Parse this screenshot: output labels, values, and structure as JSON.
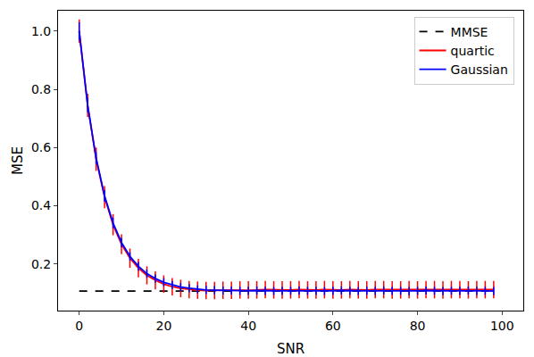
{
  "chart_data": {
    "type": "line",
    "x_label": "SNR",
    "y_label": "MSE",
    "x": [
      0,
      2,
      4,
      6,
      8,
      10,
      12,
      14,
      16,
      18,
      20,
      22,
      24,
      26,
      28,
      30,
      32,
      34,
      36,
      38,
      40,
      42,
      44,
      46,
      48,
      50,
      52,
      54,
      56,
      58,
      60,
      62,
      64,
      66,
      68,
      70,
      72,
      74,
      76,
      78,
      80,
      82,
      84,
      86,
      88,
      90,
      92,
      94,
      96,
      98
    ],
    "series": [
      {
        "name": "MMSE",
        "color": "#000000",
        "line_style": "dashed",
        "values": [
          0.107,
          0.107,
          0.107,
          0.107,
          0.107,
          0.107,
          0.107,
          0.107,
          0.107,
          0.107,
          0.107,
          0.107,
          0.107,
          0.107,
          0.107,
          0.107,
          0.107,
          0.107,
          0.107,
          0.107,
          0.107,
          0.107,
          0.107,
          0.107,
          0.107,
          0.107,
          0.107,
          0.107,
          0.107,
          0.107,
          0.107,
          0.107,
          0.107,
          0.107,
          0.107,
          0.107,
          0.107,
          0.107,
          0.107,
          0.107,
          0.107,
          0.107,
          0.107,
          0.107,
          0.107,
          0.107,
          0.107,
          0.107,
          0.107,
          0.107
        ]
      },
      {
        "name": "quartic",
        "color": "#ff0000",
        "line_style": "solid",
        "values": [
          1.0,
          0.745,
          0.56,
          0.43,
          0.335,
          0.268,
          0.22,
          0.186,
          0.161,
          0.144,
          0.131,
          0.122,
          0.116,
          0.112,
          0.11,
          0.109,
          0.109,
          0.11,
          0.11,
          0.111,
          0.111,
          0.111,
          0.112,
          0.111,
          0.111,
          0.111,
          0.112,
          0.111,
          0.111,
          0.112,
          0.111,
          0.111,
          0.112,
          0.111,
          0.111,
          0.112,
          0.112,
          0.111,
          0.111,
          0.112,
          0.111,
          0.112,
          0.112,
          0.111,
          0.112,
          0.112,
          0.111,
          0.112,
          0.112,
          0.112
        ],
        "errors": [
          0.04,
          0.04,
          0.04,
          0.038,
          0.036,
          0.034,
          0.033,
          0.032,
          0.031,
          0.031,
          0.03,
          0.03,
          0.03,
          0.03,
          0.03,
          0.03,
          0.03,
          0.03,
          0.03,
          0.03,
          0.03,
          0.03,
          0.03,
          0.03,
          0.03,
          0.03,
          0.03,
          0.03,
          0.03,
          0.03,
          0.03,
          0.03,
          0.03,
          0.03,
          0.03,
          0.03,
          0.03,
          0.03,
          0.03,
          0.03,
          0.03,
          0.03,
          0.03,
          0.03,
          0.03,
          0.03,
          0.03,
          0.03,
          0.03,
          0.03
        ]
      },
      {
        "name": "Gaussian",
        "color": "#0000ff",
        "line_style": "solid",
        "values": [
          1.0,
          0.746,
          0.564,
          0.434,
          0.341,
          0.274,
          0.226,
          0.192,
          0.167,
          0.15,
          0.137,
          0.128,
          0.121,
          0.117,
          0.113,
          0.111,
          0.11,
          0.109,
          0.109,
          0.108,
          0.108,
          0.109,
          0.108,
          0.107,
          0.108,
          0.108,
          0.109,
          0.108,
          0.108,
          0.107,
          0.108,
          0.109,
          0.108,
          0.107,
          0.108,
          0.108,
          0.109,
          0.108,
          0.108,
          0.107,
          0.108,
          0.109,
          0.108,
          0.107,
          0.108,
          0.108,
          0.109,
          0.108,
          0.108,
          0.107
        ],
        "errors": [
          0.03,
          0.025,
          0.02,
          0.02,
          0.018,
          0.016,
          0.015,
          0.015,
          0.014,
          0.014,
          0.014,
          0.014,
          0.014,
          0.014,
          0.014,
          0.014,
          0.014,
          0.014,
          0.014,
          0.014,
          0.014,
          0.014,
          0.014,
          0.014,
          0.014,
          0.014,
          0.014,
          0.014,
          0.014,
          0.014,
          0.014,
          0.014,
          0.014,
          0.014,
          0.014,
          0.014,
          0.014,
          0.014,
          0.014,
          0.014,
          0.014,
          0.014,
          0.014,
          0.014,
          0.014,
          0.014,
          0.014,
          0.014,
          0.014,
          0.014
        ]
      }
    ],
    "xlim": [
      -5,
      105
    ],
    "xticks": [
      0,
      20,
      40,
      60,
      80,
      100
    ],
    "ylim": [
      0.04,
      1.07
    ],
    "yticks": [
      0.2,
      0.4,
      0.6,
      0.8,
      {
        "value": 1.0,
        "label": "1.0"
      }
    ],
    "grid": false,
    "legend": "top right"
  }
}
